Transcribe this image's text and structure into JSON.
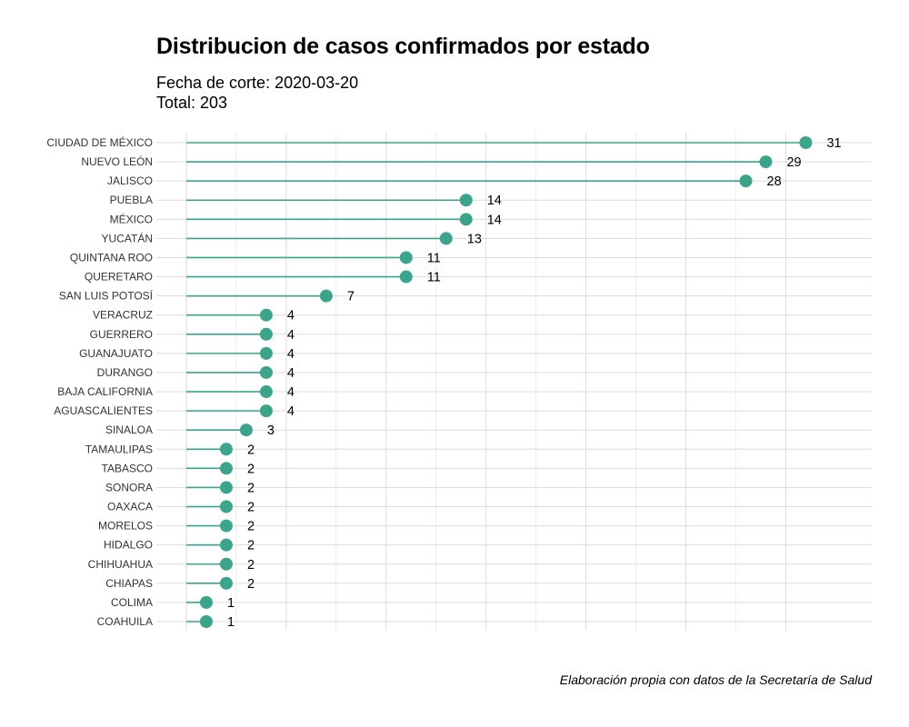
{
  "colors": {
    "accent": "#3aa58a",
    "grid": "#dcdcdc",
    "text": "#000000",
    "tick_text": "#333333"
  },
  "chart_data": {
    "type": "lollipop",
    "title": "Distribucion de casos confirmados por estado",
    "subtitle_lines": [
      "Fecha de corte: 2020-03-20",
      "Total: 203"
    ],
    "caption": "Elaboración propia con datos de la Secretaría de Salud",
    "orientation": "horizontal",
    "xlim": [
      -1.5,
      34.3
    ],
    "grid": true,
    "x_tick_labels_shown": false,
    "categories": [
      "CIUDAD DE MÉXICO",
      "NUEVO LEÓN",
      "JALISCO",
      "PUEBLA",
      "MÉXICO",
      "YUCATÁN",
      "QUINTANA ROO",
      "QUERETARO",
      "SAN LUIS POTOSÍ",
      "VERACRUZ",
      "GUERRERO",
      "GUANAJUATO",
      "DURANGO",
      "BAJA CALIFORNIA",
      "AGUASCALIENTES",
      "SINALOA",
      "TAMAULIPAS",
      "TABASCO",
      "SONORA",
      "OAXACA",
      "MORELOS",
      "HIDALGO",
      "CHIHUAHUA",
      "CHIAPAS",
      "COLIMA",
      "COAHUILA"
    ],
    "values": [
      31,
      29,
      28,
      14,
      14,
      13,
      11,
      11,
      7,
      4,
      4,
      4,
      4,
      4,
      4,
      3,
      2,
      2,
      2,
      2,
      2,
      2,
      2,
      2,
      1,
      1
    ],
    "data_labels": [
      "31",
      "29",
      "28",
      "14",
      "14",
      "13",
      "11",
      "11",
      "7",
      "4",
      "4",
      "4",
      "4",
      "4",
      "4",
      "3",
      "2",
      "2",
      "2",
      "2",
      "2",
      "2",
      "2",
      "2",
      "1",
      "1"
    ]
  }
}
